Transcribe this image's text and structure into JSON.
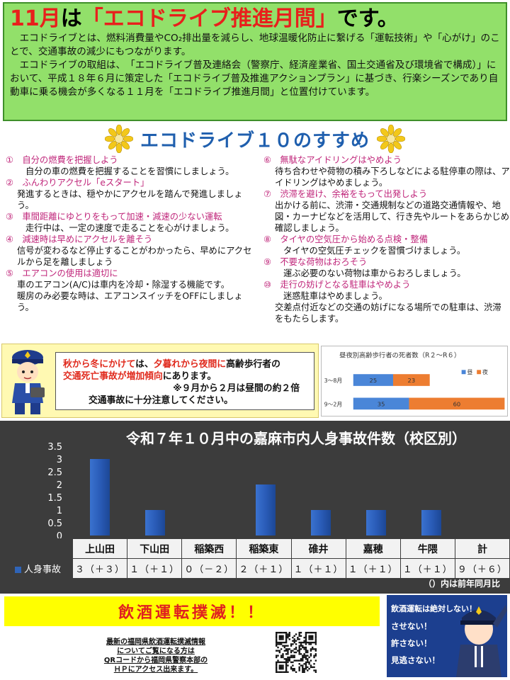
{
  "intro": {
    "headline_month": "11月",
    "headline_ha": "は",
    "headline_focus": "「エコドライブ推進月間」",
    "headline_end": "です。",
    "p1": "エコドライブとは、燃料消費量やCO₂排出量を減らし、地球温暖化防止に繋げる「運転技術」や「心がけ」のことで、交通事故の減少にもつながります。",
    "p2": "エコドライブの取組は、　「エコドライブ普及連絡会（警察庁、経済産業省、国土交通省及び環境省で構成）」において、平成１８年６月に策定した「エコドライブ普及推進アクションプラン」に基づき、行楽シーズンであり自動車に乗る機会が多くなる１１月を「エコドライブ推進月間」と位置付けています。"
  },
  "section_title": "エコドライブ１０のすすめ",
  "tips_left": [
    {
      "h": "①　自分の燃費を把握しよう",
      "b": [
        "自分の車の燃費を把握することを習慣にしましょう。"
      ]
    },
    {
      "h": "②　ふんわりアクセル「eスタート」",
      "b": [
        "発進するときは、穏やかにアクセルを踏んで発進しましょう。"
      ]
    },
    {
      "h": "③　車間距離にゆとりをもって加速・減速の少ない運転",
      "b": [
        "走行中は、一定の速度で走ることを心がけましょう。"
      ]
    },
    {
      "h": "④　減速時は早めにアクセルを離そう",
      "b": [
        "信号が変わるなど停止することがわかったら、早めにアクセルから足を離しましょう"
      ]
    },
    {
      "h": "⑤　エアコンの使用は適切に",
      "b": [
        "車のエアコン(A/C)は車内を冷却・除湿する機能です。",
        "暖房のみ必要な時は、エアコンスイッチをOFFにしましょう。"
      ]
    }
  ],
  "tips_right": [
    {
      "h": "⑥　無駄なアイドリングはやめよう",
      "b": [
        "待ち合わせや荷物の積み下ろしなどによる駐停車の際は、アイドリングはやめましょう。"
      ]
    },
    {
      "h": "⑦　渋滞を避け、余裕をもって出発しよう",
      "b": [
        "出かける前に、渋滞・交通規制などの道路交通情報や、地図・カーナビなどを活用して、行き先やルートをあらかじめ確認しましょう。"
      ]
    },
    {
      "h": "⑧　タイヤの空気圧から始める点検・整備",
      "b": [
        "タイヤの空気圧チェックを習慣づけましょう。"
      ]
    },
    {
      "h": "⑨　不要な荷物はおろそう",
      "b": [
        "運ぶ必要のない荷物は車からおろしましょう。"
      ]
    },
    {
      "h": "⑩　走行の妨げとなる駐車はやめよう",
      "b": [
        "迷惑駐車はやめましょう。",
        "交差点付近などの交通の妨げになる場所での駐車は、渋滞をもたらします。"
      ]
    }
  ],
  "warning": {
    "l1a": "秋から冬にかけて",
    "l1b": "は、",
    "l1c": "夕暮れから夜間に",
    "l1d": "高齢歩行者の",
    "l2a": "交通死亡事故が増加傾向",
    "l2b": "にあります。",
    "l3": "※９月から２月は昼間の約２倍",
    "l4": "交通事故に十分注意してください。"
  },
  "chart_data": [
    {
      "type": "bar",
      "orientation": "horizontal",
      "stacked": true,
      "title": "昼夜別高齢歩行者の死者数（R２～R６）",
      "categories": [
        "3～8月",
        "9～2月"
      ],
      "series": [
        {
          "name": "昼",
          "values": [
            25,
            35
          ],
          "color": "#4a86d8"
        },
        {
          "name": "夜",
          "values": [
            23,
            60
          ],
          "color": "#ed7d31"
        }
      ],
      "legend": "top-right"
    },
    {
      "type": "bar",
      "title": "令和７年１０月中の嘉麻市内人身事故件数（校区別）",
      "categories": [
        "上山田",
        "下山田",
        "稲築西",
        "稲築東",
        "碓井",
        "嘉穂",
        "牛隈"
      ],
      "series": [
        {
          "name": "人身事故",
          "values": [
            3,
            1,
            0,
            2,
            1,
            1,
            1
          ],
          "color": "#2f64b8"
        }
      ],
      "ylim": [
        0,
        3.5
      ],
      "yticks": [
        "3.5",
        "3",
        "2.5",
        "2",
        "1.5",
        "1",
        "0.5",
        "0"
      ],
      "table_headers": [
        "上山田",
        "下山田",
        "稲築西",
        "稲築東",
        "碓井",
        "嘉穂",
        "牛隈",
        "計"
      ],
      "table_values": [
        "３（＋３）",
        "１（＋１）",
        "０（－２）",
        "２（＋１）",
        "１（＋１）",
        "１（＋１）",
        "１（＋１）",
        "９（＋６）"
      ],
      "note": "（）内は前年同月比"
    }
  ],
  "bottom": {
    "banner": "飲酒運転撲滅！！",
    "info": [
      "最新の福岡県飲酒運転撲滅情報",
      "についてご覧になる方は",
      "QRコードから福岡県警察本部の",
      "ＨＰにアクセス出来ます。"
    ],
    "slogan": [
      "飲酒運転は絶対しない！",
      "させない！",
      "許さない！",
      "見逃さない！"
    ]
  },
  "colors": {
    "accent_green": "#92e06a",
    "title_blue": "#1f5fae",
    "tip_pink": "#c0277b",
    "alert_red": "#e02a1d"
  }
}
